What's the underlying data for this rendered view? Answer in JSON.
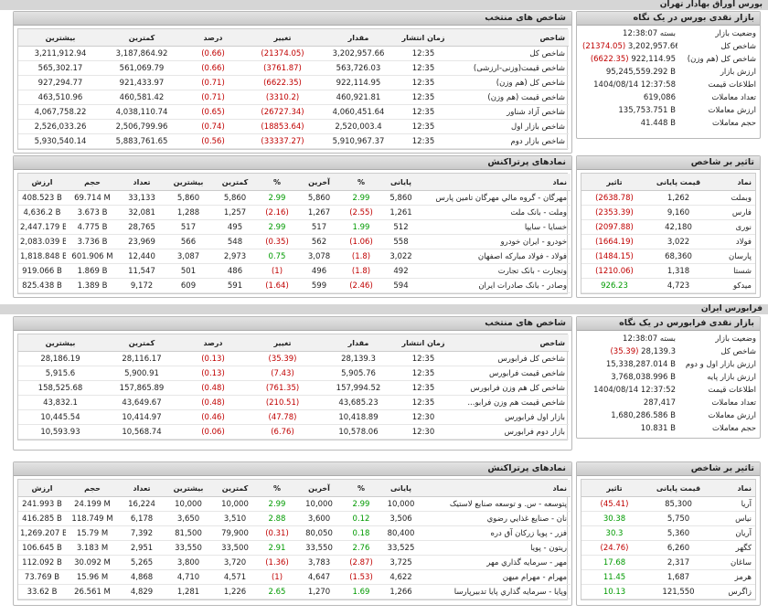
{
  "sections": [
    {
      "title": "بورس اوراق بهادار تهران",
      "indices": {
        "title": "شاخص های منتخب",
        "columns": [
          "شاخص",
          "زمان انتشار",
          "مقدار",
          "تغییر",
          "درصد",
          "کمترین",
          "بیشترین"
        ],
        "rows": [
          [
            "شاخص کل",
            "12:35",
            "3,202,957.66",
            "(21374.05)",
            "(0.66)",
            "3,187,864.92",
            "3,211,912.94"
          ],
          [
            "شاخص قیمت(وزنی-ارزشی)",
            "12:35",
            "563,726.03",
            "(3761.87)",
            "(0.66)",
            "561,069.79",
            "565,302.17"
          ],
          [
            "شاخص کل (هم وزن)",
            "12:35",
            "922,114.95",
            "(6622.35)",
            "(0.71)",
            "921,433.97",
            "927,294.77"
          ],
          [
            "شاخص قیمت (هم وزن)",
            "12:35",
            "460,921.81",
            "(3310.2)",
            "(0.71)",
            "460,581.42",
            "463,510.96"
          ],
          [
            "شاخص آزاد شناور",
            "12:35",
            "4,060,451.64",
            "(26727.34)",
            "(0.65)",
            "4,038,110.74",
            "4,067,758.22"
          ],
          [
            "شاخص بازار اول",
            "12:35",
            "2,520,003.4",
            "(18853.64)",
            "(0.74)",
            "2,506,799.96",
            "2,526,033.26"
          ],
          [
            "شاخص بازار دوم",
            "12:35",
            "5,910,967.37",
            "(33337.27)",
            "(0.56)",
            "5,883,761.65",
            "5,930,540.14"
          ]
        ]
      },
      "overview": {
        "title": "بازار نقدی بورس در یک نگاه",
        "rows": [
          {
            "label": "وضعیت بازار",
            "value": "بسته 12:38:07"
          },
          {
            "label": "شاخص کل",
            "change": "(21374.05)",
            "value": "3,202,957.66"
          },
          {
            "label": "شاخص کل (هم وزن)",
            "change": "(6622.35)",
            "value": "922,114.95"
          },
          {
            "label": "ارزش بازار",
            "value": "95,245,559.292 B"
          },
          {
            "label": "اطلاعات قیمت",
            "value": "1404/08/14 12:37:58"
          },
          {
            "label": "تعداد معاملات",
            "value": "619,086"
          },
          {
            "label": "ارزش معاملات",
            "value": "135,753.751 B"
          },
          {
            "label": "حجم معاملات",
            "value": "41.448 B"
          }
        ]
      },
      "active": {
        "title": "نمادهای پرتراکنش",
        "columns": [
          "نماد",
          "پایانی",
          "%",
          "آخرین",
          "%",
          "کمترین",
          "بیشترین",
          "تعداد",
          "حجم",
          "ارزش"
        ],
        "rows": [
          [
            "مهرگان - گروه مالي مهرگان تامين پارس",
            "5,860",
            "2.99",
            "5,860",
            "2.99",
            "5,860",
            "5,860",
            "33,133",
            "69.714 M",
            "408.523 B"
          ],
          [
            "وملت - بانک ملت",
            "1,261",
            "(2.55)",
            "1,267",
            "(2.16)",
            "1,257",
            "1,288",
            "32,081",
            "3.673 B",
            "4,636.2 B"
          ],
          [
            "خسایا - سایپا",
            "512",
            "1.99",
            "517",
            "2.99",
            "495",
            "517",
            "28,765",
            "4.775 B",
            "2,447.179 B"
          ],
          [
            "خودرو - ایران خودرو",
            "558",
            "(1.06)",
            "562",
            "(0.35)",
            "548",
            "566",
            "23,969",
            "3.736 B",
            "2,083.039 B"
          ],
          [
            "فولاد - فولاد مبارکه اصفهان",
            "3,022",
            "(1.8)",
            "3,078",
            "0.75",
            "2,973",
            "3,087",
            "12,440",
            "601.906 M",
            "1,818.848 B"
          ],
          [
            "وتجارت - بانک تجارت",
            "492",
            "(1.8)",
            "496",
            "(1)",
            "486",
            "501",
            "11,547",
            "1.869 B",
            "919.066 B"
          ],
          [
            "وصادر - بانک صادرات ایران",
            "594",
            "(2.46)",
            "599",
            "(1.64)",
            "591",
            "609",
            "9,172",
            "1.389 B",
            "825.438 B"
          ]
        ]
      },
      "impact": {
        "title": "تاثیر بر شاخص",
        "columns": [
          "نماد",
          "قیمت پایانی",
          "تاثیر"
        ],
        "rows": [
          [
            "وبملت",
            "1,262",
            "(2638.78)"
          ],
          [
            "فارس",
            "9,160",
            "(2353.39)"
          ],
          [
            "نوری",
            "42,180",
            "(2097.88)"
          ],
          [
            "فولاد",
            "3,022",
            "(1664.19)"
          ],
          [
            "پارسان",
            "68,360",
            "(1484.15)"
          ],
          [
            "شستا",
            "1,318",
            "(1210.06)"
          ],
          [
            "میدکو",
            "4,723",
            "926.23"
          ]
        ]
      }
    },
    {
      "title": "فرابورس ایران",
      "indices": {
        "title": "شاخص های منتخب",
        "columns": [
          "شاخص",
          "زمان انتشار",
          "مقدار",
          "تغییر",
          "درصد",
          "کمترین",
          "بیشترین"
        ],
        "rows": [
          [
            "شاخص کل فرابورس",
            "12:35",
            "28,139.3",
            "(35.39)",
            "(0.13)",
            "28,116.17",
            "28,186.19"
          ],
          [
            "شاخص قیمت فرابورس",
            "12:35",
            "5,905.76",
            "(7.43)",
            "(0.13)",
            "5,900.91",
            "5,915.6"
          ],
          [
            "شاخص کل هم وزن فرابورس",
            "12:35",
            "157,994.52",
            "(761.35)",
            "(0.48)",
            "157,865.89",
            "158,525.68"
          ],
          [
            "شاخص قیمت هم وزن فرابو...",
            "12:35",
            "43,685.23",
            "(210.51)",
            "(0.48)",
            "43,649.67",
            "43,832.1"
          ],
          [
            "بازار اول فرابورس",
            "12:30",
            "10,418.89",
            "(47.78)",
            "(0.46)",
            "10,414.97",
            "10,445.54"
          ],
          [
            "بازار دوم فرابورس",
            "12:30",
            "10,578.06",
            "(6.76)",
            "(0.06)",
            "10,568.74",
            "10,593.93"
          ]
        ]
      },
      "overview": {
        "title": "بازار نقدی فرابورس در یک نگاه",
        "rows": [
          {
            "label": "وضعیت بازار",
            "value": "بسته 12:38:07"
          },
          {
            "label": "شاخص کل",
            "change": "(35.39)",
            "value": "28,139.3"
          },
          {
            "label": "ارزش بازار اول و دوم",
            "value": "15,338,287.014 B"
          },
          {
            "label": "ارزش بازار پایه",
            "value": "3,768,038.996 B"
          },
          {
            "label": "اطلاعات قیمت",
            "value": "1404/08/14 12:37:52"
          },
          {
            "label": "تعداد معاملات",
            "value": "287,417"
          },
          {
            "label": "ارزش معاملات",
            "value": "1,680,286.586 B"
          },
          {
            "label": "حجم معاملات",
            "value": "10.831 B"
          }
        ]
      },
      "active": {
        "title": "نمادهای پرتراکنش",
        "columns": [
          "نماد",
          "پایانی",
          "%",
          "آخرین",
          "%",
          "کمترین",
          "بیشترین",
          "تعداد",
          "حجم",
          "ارزش"
        ],
        "rows": [
          [
            "پتوسعه - س. و توسعه صنايع لاستيک",
            "10,000",
            "2.99",
            "10,000",
            "2.99",
            "10,000",
            "10,000",
            "16,224",
            "24.199 M",
            "241.993 B"
          ],
          [
            "نان - صنايع غذايي رضوي",
            "3,506",
            "0.12",
            "3,600",
            "2.88",
            "3,510",
            "3,650",
            "6,178",
            "118.749 M",
            "416.285 B"
          ],
          [
            "فزر - پويا زرکان آق دره",
            "80,400",
            "0.18",
            "80,050",
            "(0.31)",
            "79,900",
            "81,500",
            "7,392",
            "15.79 M",
            "1,269.207 B"
          ],
          [
            "ريتون - پويا",
            "33,525",
            "2.76",
            "33,550",
            "2.91",
            "33,500",
            "33,550",
            "2,951",
            "3.183 M",
            "106.645 B"
          ],
          [
            "مهر - سرمايه گذاري مهر",
            "3,725",
            "(2.87)",
            "3,783",
            "(1.36)",
            "3,720",
            "3,800",
            "5,265",
            "30.092 M",
            "112.092 B"
          ],
          [
            "مهرام - مهرام ميهن",
            "4,622",
            "(1.53)",
            "4,647",
            "(1)",
            "4,571",
            "4,710",
            "4,868",
            "15.96 M",
            "73.769 B"
          ],
          [
            "وپايا - سرمايه گذاري پايا تدبيرپارسا",
            "1,266",
            "1.69",
            "1,270",
            "2.65",
            "1,226",
            "1,281",
            "4,829",
            "26.561 M",
            "33.62 B"
          ]
        ]
      },
      "impact": {
        "title": "تاثیر بر شاخص",
        "columns": [
          "نماد",
          "قیمت پایانی",
          "تاثیر"
        ],
        "rows": [
          [
            "آریا",
            "85,300",
            "(45.41)"
          ],
          [
            "نیاس",
            "5,750",
            "30.38"
          ],
          [
            "آریان",
            "5,360",
            "30.3"
          ],
          [
            "کگهر",
            "6,260",
            "(24.76)"
          ],
          [
            "ساغان",
            "2,317",
            "17.68"
          ],
          [
            "هرمز",
            "1,687",
            "11.45"
          ],
          [
            "زاگرس",
            "121,550",
            "10.13"
          ]
        ]
      }
    }
  ]
}
